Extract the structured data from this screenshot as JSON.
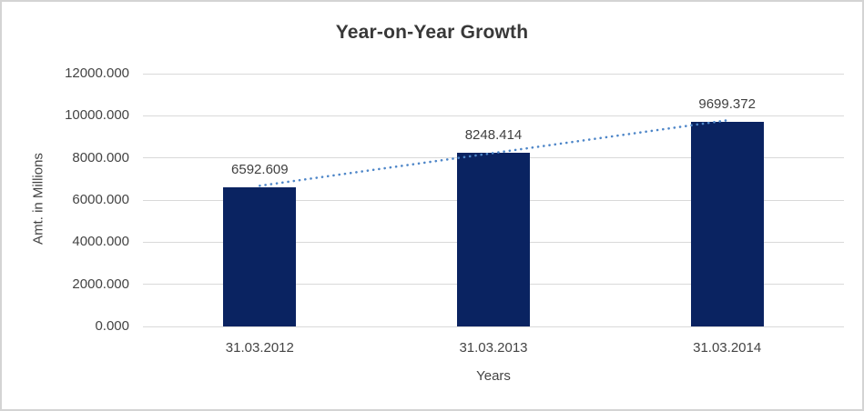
{
  "window": {
    "background_color": "#ffffff",
    "border_color": "#d4d4d4"
  },
  "chart_data": {
    "type": "bar",
    "title": "Year-on-Year Growth",
    "categories": [
      "31.03.2012",
      "31.03.2013",
      "31.03.2014"
    ],
    "values": [
      6592.609,
      8248.414,
      9699.372
    ],
    "data_labels": [
      "6592.609",
      "8248.414",
      "9699.372"
    ],
    "xlabel": "Years",
    "ylabel": "Amt. in Millions",
    "ylim": [
      0,
      12000
    ],
    "ytick_step": 2000,
    "yticks": [
      "12000.000",
      "10000.000",
      "8000.000",
      "6000.000",
      "4000.000",
      "2000.000",
      "0.000"
    ],
    "grid": true,
    "legend": "none",
    "bar_color": "#0a2361",
    "gridline_color": "#d9d9d9",
    "axis_text_color": "#444444",
    "data_label_color": "#404040",
    "title_color": "#383838",
    "trendline": {
      "type": "linear",
      "style": "dotted",
      "color": "#4e86c8"
    }
  }
}
